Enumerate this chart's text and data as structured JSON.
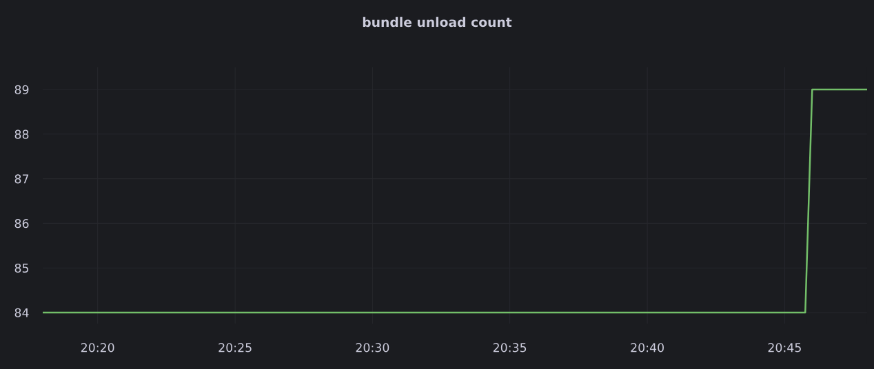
{
  "chart_data": {
    "type": "line",
    "title": "bundle unload count",
    "series": [
      {
        "color": "#73bf69",
        "x": [
          20.3,
          20.7625,
          20.7667,
          20.8
        ],
        "values": [
          84,
          84,
          89,
          89
        ]
      }
    ],
    "xlim": [
      20.3,
      20.8
    ],
    "xticks": [
      {
        "value": 20.3333,
        "label": "20:20"
      },
      {
        "value": 20.4167,
        "label": "20:25"
      },
      {
        "value": 20.5,
        "label": "20:30"
      },
      {
        "value": 20.5833,
        "label": "20:35"
      },
      {
        "value": 20.6667,
        "label": "20:40"
      },
      {
        "value": 20.75,
        "label": "20:45"
      }
    ],
    "ylim": [
      83.75,
      89.5
    ],
    "yticks": [
      84,
      85,
      86,
      87,
      88,
      89
    ],
    "grid": true,
    "marker": "none",
    "line_style": "solid"
  }
}
